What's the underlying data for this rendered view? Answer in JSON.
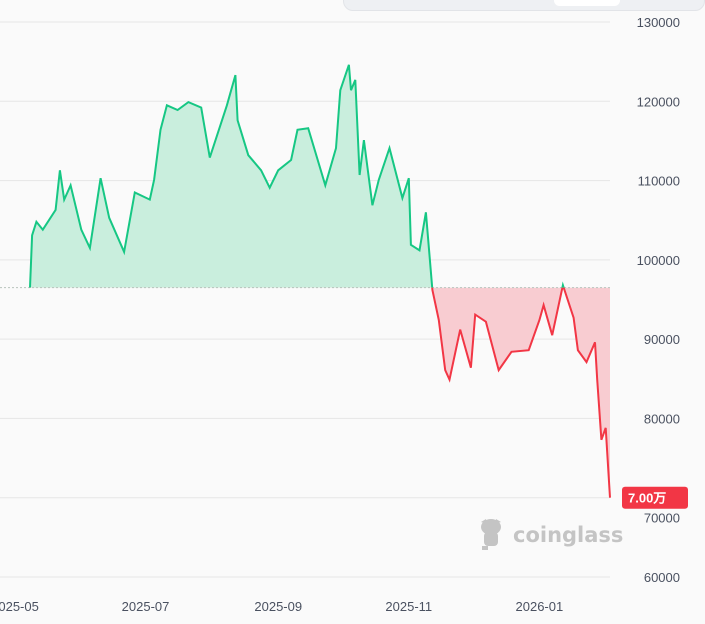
{
  "chart_data": {
    "type": "area",
    "baseline": 96500,
    "ylim": [
      60000,
      130000
    ],
    "yticks": [
      "130000",
      "120000",
      "110000",
      "100000",
      "90000",
      "80000",
      "70000",
      "60000"
    ],
    "ytick_values": [
      130000,
      120000,
      110000,
      100000,
      90000,
      80000,
      70000,
      60000
    ],
    "xticks": [
      "2025-05",
      "2025-07",
      "2025-09",
      "2025-11",
      "2026-01"
    ],
    "xlim": [
      "2025-04-24",
      "2026-02-03"
    ],
    "grid": true,
    "colors": {
      "above": "#16c784",
      "below": "#f23645",
      "fill_above": "#c9eedd",
      "fill_below": "#f8ccd1"
    },
    "last_price_label": "7.00万",
    "watermark": "coinglass",
    "x": [
      "2025-05-08",
      "2025-05-09",
      "2025-05-11",
      "2025-05-14",
      "2025-05-20",
      "2025-05-22",
      "2025-05-24",
      "2025-05-27",
      "2025-06-01",
      "2025-06-05",
      "2025-06-10",
      "2025-06-14",
      "2025-06-21",
      "2025-06-26",
      "2025-07-03",
      "2025-07-05",
      "2025-07-08",
      "2025-07-11",
      "2025-07-16",
      "2025-07-21",
      "2025-07-27",
      "2025-07-31",
      "2025-08-08",
      "2025-08-12",
      "2025-08-13",
      "2025-08-18",
      "2025-08-24",
      "2025-08-28",
      "2025-09-01",
      "2025-09-07",
      "2025-09-10",
      "2025-09-15",
      "2025-09-23",
      "2025-09-28",
      "2025-09-30",
      "2025-10-04",
      "2025-10-05",
      "2025-10-07",
      "2025-10-09",
      "2025-10-11",
      "2025-10-15",
      "2025-10-18",
      "2025-10-23",
      "2025-10-29",
      "2025-11-01",
      "2025-11-02",
      "2025-11-06",
      "2025-11-09",
      "2025-11-12",
      "2025-11-15",
      "2025-11-18",
      "2025-11-20",
      "2025-11-25",
      "2025-11-30",
      "2025-12-02",
      "2025-12-07",
      "2025-12-13",
      "2025-12-19",
      "2025-12-27",
      "2026-01-01",
      "2026-01-03",
      "2026-01-07",
      "2026-01-12",
      "2026-01-17",
      "2026-01-19",
      "2026-01-23",
      "2026-01-27",
      "2026-01-28",
      "2026-01-30",
      "2026-02-01",
      "2026-02-03"
    ],
    "values": [
      96500,
      103100,
      104800,
      103800,
      106300,
      111300,
      107600,
      109400,
      103800,
      101500,
      110300,
      105300,
      101000,
      108500,
      107600,
      110100,
      116400,
      119500,
      118900,
      119900,
      119200,
      112900,
      119500,
      123300,
      117600,
      113200,
      111300,
      109100,
      111300,
      112600,
      116400,
      116600,
      109400,
      114100,
      121400,
      124600,
      121400,
      122700,
      110700,
      115100,
      106900,
      110100,
      114100,
      107800,
      110300,
      101900,
      101200,
      106000,
      96200,
      92400,
      86100,
      84900,
      91200,
      86400,
      93100,
      92200,
      86100,
      88400,
      88600,
      92400,
      94300,
      90500,
      96800,
      92700,
      88600,
      87100,
      89600,
      84900,
      77300,
      78800,
      70000
    ]
  }
}
